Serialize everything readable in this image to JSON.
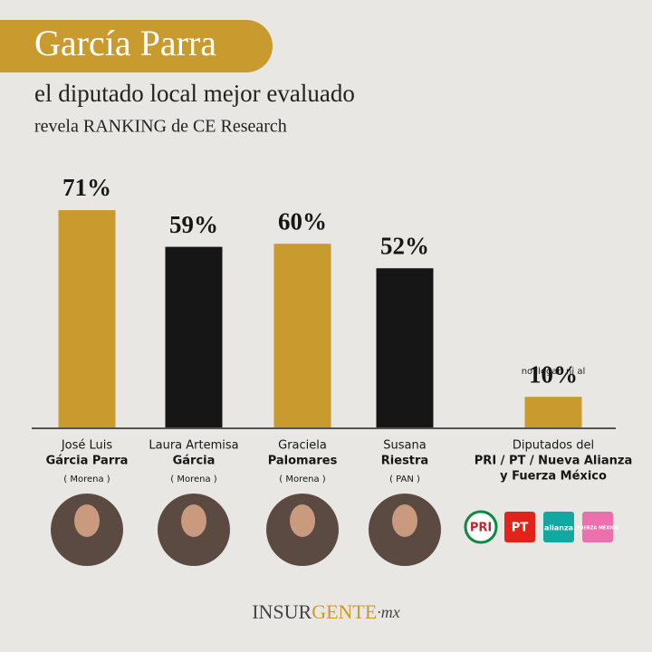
{
  "chart_data": {
    "type": "bar",
    "title": "García Parra",
    "subtitle": "el diputado local mejor evaluado",
    "subtitle_2": "revela RANKING de CE Research",
    "category_lines": [
      [
        "José Luis",
        "Gárcia Parra",
        "( Morena )"
      ],
      [
        "Laura Artemisa",
        "Gárcia",
        "( Morena )"
      ],
      [
        "Graciela",
        "Palomares",
        "( Morena )"
      ],
      [
        "Susana",
        "Riestra",
        "( PAN )"
      ],
      [
        "Diputados del",
        "PRI / PT / Nueva Alianza",
        "y Fuerza México"
      ]
    ],
    "values": [
      71,
      59,
      60,
      52,
      10
    ],
    "value_labels": [
      "71%",
      "59%",
      "60%",
      "52%",
      "10%"
    ],
    "colors": [
      "#c99a2e",
      "#161616",
      "#c99a2e",
      "#161616",
      "#c99a2e"
    ],
    "annotation": "no llegan ni al",
    "party_logos": [
      "PRI",
      "PT",
      "alianza",
      "FUERZA MÉXICO"
    ],
    "footer": [
      "INSUR",
      "GENTE",
      "·mx"
    ]
  }
}
